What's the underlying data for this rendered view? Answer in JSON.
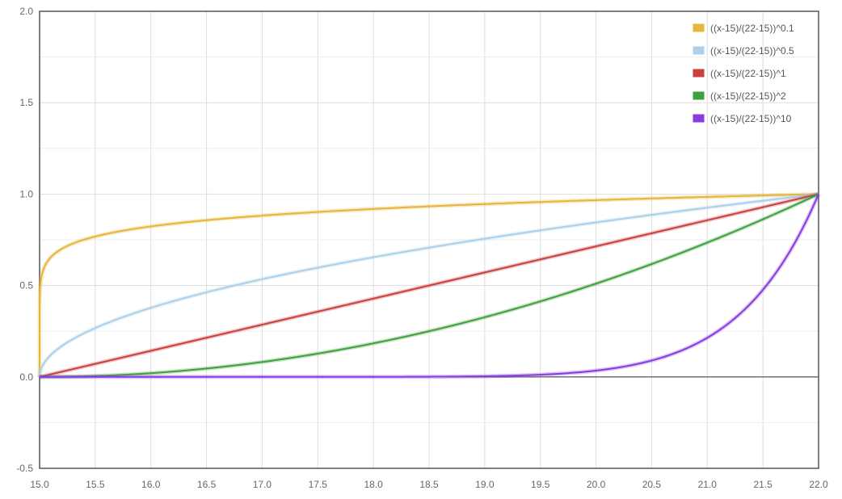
{
  "chart_data": {
    "type": "line",
    "title": "",
    "xlabel": "",
    "ylabel": "",
    "xlim": [
      15.0,
      22.0
    ],
    "ylim": [
      -0.5,
      2.0
    ],
    "grid": true,
    "legend_position": "top-right",
    "x_ticks": [
      "15.0",
      "15.5",
      "16.0",
      "16.5",
      "17.0",
      "17.5",
      "18.0",
      "18.5",
      "19.0",
      "19.5",
      "20.0",
      "20.5",
      "21.0",
      "21.5",
      "22.0"
    ],
    "y_ticks": [
      "2.0",
      "1.5",
      "1.0",
      "0.5",
      "0.0",
      "-0.5"
    ],
    "series": [
      {
        "name": "((x-15)/(22-15))^0.1",
        "exponent": 0.1,
        "color": "#e6b53a",
        "x": [
          15.0,
          15.5,
          16.0,
          16.5,
          17.0,
          17.5,
          18.0,
          18.5,
          19.0,
          19.5,
          20.0,
          20.5,
          21.0,
          21.5,
          22.0
        ],
        "y": [
          0.0,
          0.768,
          0.823,
          0.857,
          0.882,
          0.902,
          0.919,
          0.934,
          0.947,
          0.958,
          0.967,
          0.977,
          0.985,
          0.993,
          1.0
        ]
      },
      {
        "name": "((x-15)/(22-15))^0.5",
        "exponent": 0.5,
        "color": "#aecfe9",
        "x": [
          15.0,
          15.5,
          16.0,
          16.5,
          17.0,
          17.5,
          18.0,
          18.5,
          19.0,
          19.5,
          20.0,
          20.5,
          21.0,
          21.5,
          22.0
        ],
        "y": [
          0.0,
          0.267,
          0.378,
          0.463,
          0.535,
          0.598,
          0.655,
          0.707,
          0.756,
          0.802,
          0.845,
          0.886,
          0.926,
          0.964,
          1.0
        ]
      },
      {
        "name": "((x-15)/(22-15))^1",
        "exponent": 1,
        "color": "#c94040",
        "x": [
          15.0,
          15.5,
          16.0,
          16.5,
          17.0,
          17.5,
          18.0,
          18.5,
          19.0,
          19.5,
          20.0,
          20.5,
          21.0,
          21.5,
          22.0
        ],
        "y": [
          0.0,
          0.071,
          0.143,
          0.214,
          0.286,
          0.357,
          0.429,
          0.5,
          0.571,
          0.643,
          0.714,
          0.786,
          0.857,
          0.929,
          1.0
        ]
      },
      {
        "name": "((x-15)/(22-15))^2",
        "exponent": 2,
        "color": "#3fa03f",
        "x": [
          15.0,
          15.5,
          16.0,
          16.5,
          17.0,
          17.5,
          18.0,
          18.5,
          19.0,
          19.5,
          20.0,
          20.5,
          21.0,
          21.5,
          22.0
        ],
        "y": [
          0.0,
          0.005,
          0.02,
          0.046,
          0.082,
          0.128,
          0.184,
          0.25,
          0.327,
          0.413,
          0.51,
          0.617,
          0.735,
          0.862,
          1.0
        ]
      },
      {
        "name": "((x-15)/(22-15))^10",
        "exponent": 10,
        "color": "#8a3be0",
        "x": [
          15.0,
          15.5,
          16.0,
          16.5,
          17.0,
          17.5,
          18.0,
          18.5,
          19.0,
          19.5,
          20.0,
          20.5,
          21.0,
          21.5,
          22.0
        ],
        "y": [
          0.0,
          0.0,
          0.0,
          0.0,
          0.0,
          0.0,
          0.0,
          0.001,
          0.004,
          0.012,
          0.035,
          0.09,
          0.214,
          0.477,
          1.0
        ]
      }
    ]
  }
}
